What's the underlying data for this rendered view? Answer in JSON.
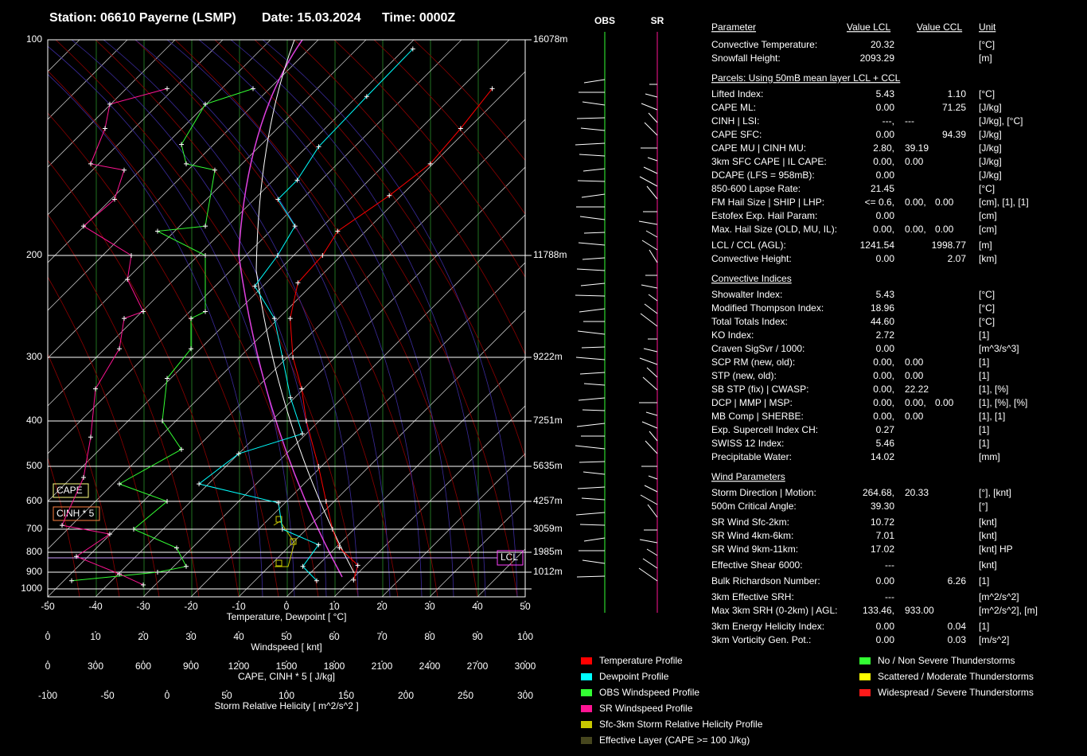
{
  "header": {
    "station": "Station: 06610 Payerne (LSMP)",
    "date": "Date: 15.03.2024",
    "time": "Time: 0000Z"
  },
  "chart_data": {
    "type": "skewt",
    "xlim": [
      -50,
      50
    ],
    "xticks": [
      -50,
      -40,
      -30,
      -20,
      -10,
      0,
      10,
      20,
      30,
      40,
      50
    ],
    "xlabel": "Temperature, Dewpoint  [ °C]",
    "pressure_ticks": [
      100,
      200,
      300,
      400,
      500,
      600,
      700,
      800,
      900,
      1000
    ],
    "height_levels": [
      {
        "pressure": 100,
        "height": "16078m"
      },
      {
        "pressure": 200,
        "height": "11788m"
      },
      {
        "pressure": 300,
        "height": "9222m"
      },
      {
        "pressure": 400,
        "height": "7251m"
      },
      {
        "pressure": 500,
        "height": "5635m"
      },
      {
        "pressure": 600,
        "height": "4257m"
      },
      {
        "pressure": 700,
        "height": "3059m"
      },
      {
        "pressure": 800,
        "height": "1985m"
      },
      {
        "pressure": 900,
        "height": "1012m"
      }
    ],
    "series": [
      {
        "name": "Temperature Profile",
        "color": "#ff0000",
        "pressure": [
          117,
          133,
          149,
          165,
          185,
          200,
          223,
          257,
          300,
          346,
          400,
          500,
          600,
          700,
          779,
          864,
          946
        ],
        "values": [
          -51.2,
          -50.3,
          -50,
          -52.6,
          -56.7,
          -55.3,
          -55.3,
          -50.2,
          -42.3,
          -34.5,
          -27.5,
          -16.4,
          -8.2,
          -1.6,
          3.3,
          10.5,
          12.4
        ]
      },
      {
        "name": "Dewpoint Profile",
        "color": "#00ffff",
        "pressure": [
          103,
          120,
          141,
          157,
          167,
          182,
          200,
          226,
          257,
          300,
          360,
          426,
          470,
          548,
          605,
          700,
          766,
          870,
          950
        ],
        "values": [
          -75.3,
          -76,
          -76.6,
          -74.8,
          -75.2,
          -66.6,
          -64.7,
          -63.7,
          -53.5,
          -44.5,
          -35.2,
          -25.9,
          -35.5,
          -38.1,
          -17.9,
          -12.1,
          -1.6,
          -0.8,
          4.8
        ]
      }
    ],
    "wind_axis": {
      "label": "Windspeed  [ knt]",
      "lim": [
        0,
        100
      ],
      "ticks": [
        0,
        10,
        20,
        30,
        40,
        50,
        60,
        70,
        80,
        90,
        100
      ]
    },
    "wind_series": [
      {
        "name": "OBS Windspeed Profile",
        "color": "#33ff33",
        "pressure": [
          117,
          123,
          140,
          149,
          152,
          182,
          185,
          200,
          250,
          257,
          290,
          330,
          400,
          460,
          548,
          600,
          700,
          780,
          870,
          900,
          950
        ],
        "values": [
          43,
          33,
          28,
          29,
          35,
          33,
          23,
          33,
          33,
          30,
          30,
          25,
          24,
          28,
          15,
          25,
          18,
          27,
          29,
          23,
          5
        ]
      },
      {
        "name": "SR Windspeed Profile",
        "color": "#ff1493",
        "pressure": [
          117,
          123,
          133,
          149,
          152,
          167,
          182,
          200,
          220,
          250,
          257,
          290,
          346,
          433,
          530,
          685,
          720,
          820,
          910,
          975
        ],
        "values": [
          25,
          13,
          12,
          9,
          16,
          14,
          7.5,
          17.5,
          16.7,
          20,
          16,
          15,
          10,
          9,
          7.5,
          3,
          13,
          6,
          15,
          20
        ]
      }
    ],
    "cape_axis": {
      "label": "CAPE, CINH * 5  [ J/kg]",
      "lim": [
        0,
        3000
      ],
      "ticks": [
        0,
        300,
        600,
        900,
        1200,
        1500,
        1800,
        2100,
        2400,
        2700,
        3000
      ]
    },
    "srh_axis": {
      "label": "Storm Relative Helicity  [ m^2/s^2 ]",
      "lim": [
        -100,
        300
      ],
      "ticks": [
        -100,
        -50,
        0,
        50,
        100,
        150,
        200,
        250,
        300
      ]
    },
    "markers": {
      "cape": "CAPE",
      "cinh": "CINH * 5",
      "lcl": "LCL"
    },
    "barb_labels": {
      "obs": "OBS",
      "sr": "SR"
    },
    "legend_extra": [
      {
        "name": "Sfc-3km Storm Relative Helicity Profile",
        "color": "#c8c800"
      },
      {
        "name": "Effective Layer (CAPE >= 100 J/kg)",
        "color": "#46461e"
      }
    ],
    "thunderstorm_legend": [
      {
        "name": "No / Non Severe Thunderstorms",
        "color": "#33ff33"
      },
      {
        "name": "Scattered / Moderate Thunderstorms",
        "color": "#ffff00"
      },
      {
        "name": "Widespread / Severe Thunderstorms",
        "color": "#ff1a1a"
      }
    ]
  },
  "table": {
    "header": [
      "Parameter",
      "Value LCL",
      "Value CCL",
      "Unit"
    ],
    "rows": [
      {
        "label": "Convective Temperature:",
        "values": [
          {
            "text": "20.32",
            "color": "#ffff00"
          }
        ],
        "unit": "[°C]"
      },
      {
        "label": "Snowfall Height:",
        "values": [
          {
            "text": "2093.29",
            "color": "#ffffff"
          }
        ],
        "unit": "[m]"
      },
      {
        "section": "Parcels: Using 50mB mean layer LCL + CCL"
      },
      {
        "label": "Lifted Index:",
        "values": [
          {
            "text": "5.43",
            "color": "#33ff33"
          }
        ],
        "ccl": {
          "text": "1.10",
          "color": "#ffff00"
        },
        "unit": "[°C]"
      },
      {
        "label": "CAPE ML:",
        "values": [
          {
            "text": "0.00",
            "color": "#33ff33"
          }
        ],
        "ccl": {
          "text": "71.25",
          "color": "#33ff33"
        },
        "unit": "[J/kg]"
      },
      {
        "label": "CINH | LSI:",
        "values": [
          {
            "text": "---,",
            "color": "#ffffff"
          },
          {
            "text": "---",
            "color": "#ffffff"
          }
        ],
        "unit": "[J/kg], [°C]"
      },
      {
        "label": "CAPE SFC:",
        "values": [
          {
            "text": "0.00",
            "color": "#33ff33"
          }
        ],
        "ccl": {
          "text": "94.39",
          "color": "#33ff33"
        },
        "unit": "[J/kg]"
      },
      {
        "label": "CAPE MU | CINH MU:",
        "values": [
          {
            "text": "2.80,",
            "color": "#33ff33"
          },
          {
            "text": "39.19",
            "color": "#ff1a1a"
          }
        ],
        "unit": "[J/kg]"
      },
      {
        "label": "3km SFC CAPE | IL CAPE:",
        "values": [
          {
            "text": "0.00,",
            "color": "#33ff33"
          },
          {
            "text": "0.00",
            "color": "#33ff33"
          }
        ],
        "unit": "[J/kg]"
      },
      {
        "label": "DCAPE (LFS = 958mB):",
        "values": [
          {
            "text": "0.00",
            "color": "#33ff33"
          }
        ],
        "unit": "[J/kg]"
      },
      {
        "label": "850-600 Lapse Rate:",
        "values": [
          {
            "text": "21.45",
            "color": "#ff1a1a"
          }
        ],
        "unit": "[°C]"
      },
      {
        "label": "FM Hail Size | SHIP | LHP:",
        "values": [
          {
            "text": "<= 0.6,",
            "color": "#33ff33"
          },
          {
            "text": "0.00,",
            "color": "#33ff33"
          },
          {
            "text": "0.00",
            "color": "#33ff33"
          }
        ],
        "unit": "[cm], [1], [1]"
      },
      {
        "label": "Estofex Exp. Hail Param:",
        "values": [
          {
            "text": "0.00",
            "color": "#33ff33"
          }
        ],
        "unit": "[cm]"
      },
      {
        "label": "Max. Hail Size (OLD, MU, IL):",
        "values": [
          {
            "text": "0.00,",
            "color": "#33ff33"
          },
          {
            "text": "0.00,",
            "color": "#33ff33"
          },
          {
            "text": "0.00",
            "color": "#33ff33"
          }
        ],
        "unit": "[cm]"
      },
      {
        "label": "LCL / CCL (AGL):",
        "values": [
          {
            "text": "1241.54",
            "color": "#ffff00"
          }
        ],
        "ccl": {
          "text": "1998.77",
          "color": "#ffff00"
        },
        "unit": "[m]"
      },
      {
        "label": "Convective Height:",
        "values": [
          {
            "text": "0.00",
            "color": "#33ff33"
          }
        ],
        "ccl": {
          "text": "2.07",
          "color": "#33ff33"
        },
        "unit": "[km]"
      },
      {
        "section": "Convective Indices"
      },
      {
        "label": "Showalter Index:",
        "values": [
          {
            "text": "5.43",
            "color": "#33ff33"
          }
        ],
        "unit": "[°C]"
      },
      {
        "label": "Modified Thompson Index:",
        "values": [
          {
            "text": "18.96",
            "color": "#33ff33"
          }
        ],
        "unit": "[°C]"
      },
      {
        "label": "Total Totals Index:",
        "values": [
          {
            "text": "44.60",
            "color": "#33ff33"
          }
        ],
        "unit": "[°C]"
      },
      {
        "label": "KO Index:",
        "values": [
          {
            "text": "2.72",
            "color": "#33ff33"
          }
        ],
        "unit": "[1]"
      },
      {
        "label": "Craven SigSvr / 1000:",
        "values": [
          {
            "text": "0.00",
            "color": "#33ff33"
          }
        ],
        "unit": "[m^3/s^3]"
      },
      {
        "label": "SCP RM (new, old):",
        "values": [
          {
            "text": "0.00,",
            "color": "#33ff33"
          },
          {
            "text": "0.00",
            "color": "#33ff33"
          }
        ],
        "unit": "[1]"
      },
      {
        "label": "STP (new, old):",
        "values": [
          {
            "text": "0.00,",
            "color": "#33ff33"
          },
          {
            "text": "0.00",
            "color": "#33ff33"
          }
        ],
        "unit": "[1]"
      },
      {
        "label": "SB STP (fix) | CWASP:",
        "values": [
          {
            "text": "0.00,",
            "color": "#33ff33"
          },
          {
            "text": "22.22",
            "color": "#33ff33"
          }
        ],
        "unit": "[1], [%]"
      },
      {
        "label": "DCP | MMP | MSP:",
        "values": [
          {
            "text": "0.00,",
            "color": "#33ff33"
          },
          {
            "text": "0.00,",
            "color": "#33ff33"
          },
          {
            "text": "0.00",
            "color": "#33ff33"
          }
        ],
        "unit": "[1], [%], [%]"
      },
      {
        "label": "MB Comp | SHERBE:",
        "values": [
          {
            "text": "0.00,",
            "color": "#33ff33"
          },
          {
            "text": "0.00",
            "color": "#33ff33"
          }
        ],
        "unit": "[1], [1]"
      },
      {
        "label": "Exp. Supercell Index CH:",
        "values": [
          {
            "text": "0.27",
            "color": "#33ff33"
          }
        ],
        "unit": "[1]"
      },
      {
        "label": "SWISS 12 Index:",
        "values": [
          {
            "text": "5.46",
            "color": "#33ff33"
          }
        ],
        "unit": "[1]"
      },
      {
        "label": "Precipitable Water:",
        "values": [
          {
            "text": "14.02",
            "color": "#33ff33"
          }
        ],
        "unit": "[mm]"
      },
      {
        "section": "Wind Parameters"
      },
      {
        "label": "Storm Direction | Motion:",
        "values": [
          {
            "text": "264.68,",
            "color": "#ffffff"
          },
          {
            "text": "20.33",
            "color": "#ffff00"
          }
        ],
        "unit": "[°], [knt]"
      },
      {
        "label": "500m Critical Angle:",
        "values": [
          {
            "text": "39.30",
            "color": "#33ff33"
          }
        ],
        "unit": "[°]"
      },
      {
        "label": "SR Wind Sfc-2km:",
        "values": [
          {
            "text": "10.72",
            "color": "#33ff33"
          }
        ],
        "unit": "[knt]"
      },
      {
        "label": "SR Wind 4km-6km:",
        "values": [
          {
            "text": "7.01",
            "color": "#33ff33"
          }
        ],
        "unit": "[knt]"
      },
      {
        "label": "SR Wind 9km-11km:",
        "values": [
          {
            "text": "17.02",
            "color": "#33ff33"
          }
        ],
        "unit": "[knt] HP"
      },
      {
        "label": "Effective Shear 6000:",
        "values": [
          {
            "text": "---",
            "color": "#ffffff"
          }
        ],
        "unit": "[knt]"
      },
      {
        "label": "Bulk Richardson Number:",
        "values": [
          {
            "text": "0.00",
            "color": "#33ff33"
          }
        ],
        "ccl": {
          "text": "6.26",
          "color": "#33ff33"
        },
        "unit": "[1]"
      },
      {
        "label": "3km Effective SRH:",
        "values": [
          {
            "text": "---",
            "color": "#ffffff"
          }
        ],
        "unit": "[m^2/s^2]"
      },
      {
        "label": "Max 3km SRH (0-2km) | AGL:",
        "values": [
          {
            "text": "133.46,",
            "color": "#ff1a1a"
          },
          {
            "text": "933.00",
            "color": "#33ff33"
          }
        ],
        "unit": "[m^2/s^2], [m]"
      },
      {
        "label": "3km Energy Helicity Index:",
        "values": [
          {
            "text": "0.00",
            "color": "#33ff33"
          }
        ],
        "ccl": {
          "text": "0.04",
          "color": "#33ff33"
        },
        "unit": "[1]"
      },
      {
        "label": "3km Vorticity Gen. Pot.:",
        "values": [
          {
            "text": "0.00",
            "color": "#33ff33"
          }
        ],
        "ccl": {
          "text": "0.03",
          "color": "#33ff33"
        },
        "unit": "[m/s^2]"
      }
    ]
  }
}
